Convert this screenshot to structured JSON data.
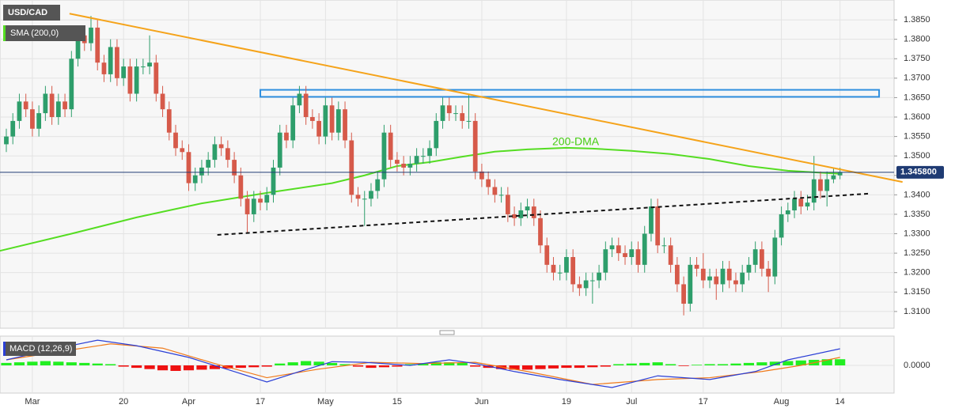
{
  "chart_data": {
    "type": "candlestick",
    "title": "USD/CAD",
    "indicator_label": "SMA (200,0)",
    "up_color": "#2e9e6b",
    "down_color": "#d65a4a",
    "grid": true,
    "xlim": [
      -0.97,
      136.3
    ],
    "ylim": [
      1.3057,
      1.3901
    ],
    "xticks": [
      {
        "value": 4,
        "label": "Mar"
      },
      {
        "value": 18,
        "label": "20"
      },
      {
        "value": 28,
        "label": "Apr"
      },
      {
        "value": 39,
        "label": "17"
      },
      {
        "value": 49,
        "label": "May"
      },
      {
        "value": 60,
        "label": "15"
      },
      {
        "value": 73,
        "label": "Jun"
      },
      {
        "value": 86,
        "label": "19"
      },
      {
        "value": 96,
        "label": "Jul"
      },
      {
        "value": 107,
        "label": "17"
      },
      {
        "value": 119,
        "label": "Aug"
      },
      {
        "value": 128,
        "label": "14"
      }
    ],
    "yticks": [
      {
        "value": 1.31,
        "label": "1.3100"
      },
      {
        "value": 1.315,
        "label": "1.3150"
      },
      {
        "value": 1.32,
        "label": "1.3200"
      },
      {
        "value": 1.325,
        "label": "1.3250"
      },
      {
        "value": 1.33,
        "label": "1.3300"
      },
      {
        "value": 1.335,
        "label": "1.3350"
      },
      {
        "value": 1.34,
        "label": "1.3400"
      },
      {
        "value": 1.345,
        "label": "1.3450"
      },
      {
        "value": 1.35,
        "label": "1.3500"
      },
      {
        "value": 1.355,
        "label": "1.3550"
      },
      {
        "value": 1.36,
        "label": "1.3600"
      },
      {
        "value": 1.365,
        "label": "1.3650"
      },
      {
        "value": 1.37,
        "label": "1.3700"
      },
      {
        "value": 1.375,
        "label": "1.3750"
      },
      {
        "value": 1.38,
        "label": "1.3800"
      },
      {
        "value": 1.385,
        "label": "1.3850"
      }
    ],
    "last_price": {
      "value": 1.3458,
      "label": "1.345800"
    },
    "candles": [
      [
        1.353,
        1.357,
        1.351,
        1.355
      ],
      [
        1.355,
        1.361,
        1.353,
        1.359
      ],
      [
        1.359,
        1.366,
        1.357,
        1.364
      ],
      [
        1.364,
        1.366,
        1.36,
        1.362
      ],
      [
        1.362,
        1.364,
        1.355,
        1.357
      ],
      [
        1.357,
        1.363,
        1.355,
        1.361
      ],
      [
        1.361,
        1.368,
        1.359,
        1.366
      ],
      [
        1.366,
        1.368,
        1.358,
        1.36
      ],
      [
        1.36,
        1.366,
        1.358,
        1.364
      ],
      [
        1.364,
        1.366,
        1.36,
        1.362
      ],
      [
        1.362,
        1.377,
        1.36,
        1.375
      ],
      [
        1.375,
        1.383,
        1.373,
        1.381
      ],
      [
        1.381,
        1.383,
        1.377,
        1.379
      ],
      [
        1.379,
        1.386,
        1.377,
        1.383
      ],
      [
        1.383,
        1.385,
        1.372,
        1.374
      ],
      [
        1.374,
        1.376,
        1.369,
        1.371
      ],
      [
        1.371,
        1.38,
        1.369,
        1.378
      ],
      [
        1.378,
        1.38,
        1.368,
        1.37
      ],
      [
        1.37,
        1.375,
        1.368,
        1.373
      ],
      [
        1.373,
        1.375,
        1.364,
        1.366
      ],
      [
        1.366,
        1.375,
        1.364,
        1.373
      ],
      [
        1.373,
        1.375,
        1.371,
        1.373
      ],
      [
        1.373,
        1.381,
        1.371,
        1.374
      ],
      [
        1.374,
        1.376,
        1.364,
        1.366
      ],
      [
        1.366,
        1.368,
        1.36,
        1.362
      ],
      [
        1.362,
        1.364,
        1.354,
        1.356
      ],
      [
        1.356,
        1.358,
        1.35,
        1.352
      ],
      [
        1.352,
        1.354,
        1.349,
        1.351
      ],
      [
        1.351,
        1.353,
        1.341,
        1.343
      ],
      [
        1.343,
        1.347,
        1.341,
        1.345
      ],
      [
        1.345,
        1.349,
        1.343,
        1.347
      ],
      [
        1.347,
        1.351,
        1.345,
        1.349
      ],
      [
        1.349,
        1.355,
        1.347,
        1.353
      ],
      [
        1.353,
        1.355,
        1.35,
        1.352
      ],
      [
        1.352,
        1.354,
        1.347,
        1.349
      ],
      [
        1.349,
        1.351,
        1.343,
        1.345
      ],
      [
        1.345,
        1.347,
        1.337,
        1.339
      ],
      [
        1.339,
        1.341,
        1.33,
        1.335
      ],
      [
        1.335,
        1.341,
        1.333,
        1.339
      ],
      [
        1.339,
        1.341,
        1.336,
        1.338
      ],
      [
        1.338,
        1.342,
        1.336,
        1.34
      ],
      [
        1.34,
        1.349,
        1.338,
        1.347
      ],
      [
        1.347,
        1.358,
        1.345,
        1.356
      ],
      [
        1.356,
        1.358,
        1.352,
        1.354
      ],
      [
        1.354,
        1.365,
        1.352,
        1.363
      ],
      [
        1.363,
        1.368,
        1.361,
        1.366
      ],
      [
        1.366,
        1.368,
        1.358,
        1.36
      ],
      [
        1.36,
        1.362,
        1.357,
        1.359
      ],
      [
        1.359,
        1.361,
        1.353,
        1.355
      ],
      [
        1.355,
        1.365,
        1.353,
        1.363
      ],
      [
        1.363,
        1.365,
        1.354,
        1.356
      ],
      [
        1.356,
        1.364,
        1.354,
        1.362
      ],
      [
        1.362,
        1.364,
        1.352,
        1.354
      ],
      [
        1.354,
        1.356,
        1.338,
        1.34
      ],
      [
        1.34,
        1.342,
        1.337,
        1.339
      ],
      [
        1.339,
        1.341,
        1.332,
        1.339
      ],
      [
        1.339,
        1.343,
        1.337,
        1.341
      ],
      [
        1.341,
        1.346,
        1.339,
        1.344
      ],
      [
        1.344,
        1.358,
        1.342,
        1.356
      ],
      [
        1.356,
        1.358,
        1.347,
        1.349
      ],
      [
        1.349,
        1.351,
        1.346,
        1.348
      ],
      [
        1.348,
        1.35,
        1.345,
        1.347
      ],
      [
        1.347,
        1.35,
        1.345,
        1.348
      ],
      [
        1.348,
        1.352,
        1.346,
        1.35
      ],
      [
        1.35,
        1.352,
        1.348,
        1.35
      ],
      [
        1.35,
        1.354,
        1.348,
        1.352
      ],
      [
        1.352,
        1.361,
        1.35,
        1.359
      ],
      [
        1.359,
        1.365,
        1.357,
        1.363
      ],
      [
        1.363,
        1.365,
        1.359,
        1.361
      ],
      [
        1.361,
        1.363,
        1.359,
        1.361
      ],
      [
        1.361,
        1.363,
        1.357,
        1.359
      ],
      [
        1.359,
        1.366,
        1.357,
        1.359
      ],
      [
        1.359,
        1.361,
        1.344,
        1.346
      ],
      [
        1.346,
        1.348,
        1.342,
        1.344
      ],
      [
        1.344,
        1.346,
        1.34,
        1.342
      ],
      [
        1.342,
        1.344,
        1.338,
        1.34
      ],
      [
        1.34,
        1.342,
        1.338,
        1.34
      ],
      [
        1.34,
        1.342,
        1.333,
        1.335
      ],
      [
        1.335,
        1.337,
        1.332,
        1.334
      ],
      [
        1.334,
        1.338,
        1.332,
        1.336
      ],
      [
        1.336,
        1.339,
        1.334,
        1.337
      ],
      [
        1.337,
        1.339,
        1.332,
        1.334
      ],
      [
        1.334,
        1.336,
        1.325,
        1.327
      ],
      [
        1.327,
        1.329,
        1.32,
        1.322
      ],
      [
        1.322,
        1.324,
        1.318,
        1.32
      ],
      [
        1.32,
        1.322,
        1.318,
        1.32
      ],
      [
        1.32,
        1.326,
        1.318,
        1.324
      ],
      [
        1.324,
        1.326,
        1.315,
        1.317
      ],
      [
        1.317,
        1.319,
        1.314,
        1.316
      ],
      [
        1.316,
        1.32,
        1.314,
        1.318
      ],
      [
        1.318,
        1.32,
        1.312,
        1.318
      ],
      [
        1.318,
        1.322,
        1.316,
        1.32
      ],
      [
        1.32,
        1.328,
        1.318,
        1.326
      ],
      [
        1.326,
        1.329,
        1.324,
        1.327
      ],
      [
        1.327,
        1.329,
        1.323,
        1.325
      ],
      [
        1.325,
        1.327,
        1.322,
        1.324
      ],
      [
        1.324,
        1.328,
        1.322,
        1.326
      ],
      [
        1.326,
        1.328,
        1.32,
        1.322
      ],
      [
        1.322,
        1.332,
        1.32,
        1.33
      ],
      [
        1.33,
        1.339,
        1.328,
        1.337
      ],
      [
        1.337,
        1.339,
        1.325,
        1.327
      ],
      [
        1.327,
        1.329,
        1.325,
        1.327
      ],
      [
        1.327,
        1.329,
        1.32,
        1.322
      ],
      [
        1.322,
        1.324,
        1.315,
        1.317
      ],
      [
        1.317,
        1.319,
        1.309,
        1.312
      ],
      [
        1.312,
        1.324,
        1.31,
        1.322
      ],
      [
        1.322,
        1.324,
        1.319,
        1.321
      ],
      [
        1.321,
        1.325,
        1.316,
        1.318
      ],
      [
        1.318,
        1.321,
        1.316,
        1.319
      ],
      [
        1.319,
        1.321,
        1.313,
        1.317
      ],
      [
        1.317,
        1.323,
        1.315,
        1.321
      ],
      [
        1.321,
        1.323,
        1.316,
        1.318
      ],
      [
        1.318,
        1.32,
        1.315,
        1.317
      ],
      [
        1.317,
        1.322,
        1.315,
        1.32
      ],
      [
        1.32,
        1.324,
        1.318,
        1.322
      ],
      [
        1.322,
        1.328,
        1.32,
        1.326
      ],
      [
        1.326,
        1.328,
        1.319,
        1.321
      ],
      [
        1.321,
        1.323,
        1.315,
        1.319
      ],
      [
        1.319,
        1.331,
        1.317,
        1.329
      ],
      [
        1.329,
        1.337,
        1.327,
        1.335
      ],
      [
        1.335,
        1.338,
        1.333,
        1.336
      ],
      [
        1.336,
        1.341,
        1.334,
        1.339
      ],
      [
        1.339,
        1.341,
        1.335,
        1.337
      ],
      [
        1.337,
        1.34,
        1.336,
        1.338
      ],
      [
        1.338,
        1.35,
        1.336,
        1.344
      ],
      [
        1.344,
        1.346,
        1.339,
        1.341
      ],
      [
        1.341,
        1.346,
        1.337,
        1.344
      ],
      [
        1.344,
        1.347,
        1.343,
        1.345
      ],
      [
        1.345,
        1.347,
        1.344,
        1.3458
      ]
    ],
    "sma": {
      "name": "200-DMA",
      "color": "#55dd22",
      "x": [
        -1,
        10,
        20,
        30,
        40,
        50,
        55,
        60,
        65,
        70,
        75,
        80,
        86,
        90,
        96,
        102,
        108,
        114,
        120,
        128
      ],
      "values": [
        1.3256,
        1.33,
        1.3342,
        1.3378,
        1.3405,
        1.343,
        1.345,
        1.3474,
        1.3484,
        1.3498,
        1.3511,
        1.3517,
        1.3521,
        1.3519,
        1.3513,
        1.3505,
        1.3492,
        1.3474,
        1.3462,
        1.3454
      ]
    },
    "resistance_line": {
      "color": "#f5a31a",
      "x": [
        9.7,
        137.6
      ],
      "values": [
        1.3866,
        1.3433
      ]
    },
    "support_line": {
      "color": "#111111",
      "x": [
        32.4,
        132.4
      ],
      "values": [
        1.3297,
        1.3403
      ]
    },
    "zone": {
      "color": "#2f8fdf",
      "x": [
        39,
        134
      ],
      "values": [
        1.3652,
        1.367
      ]
    },
    "macd": {
      "title": "MACD (12,26,9)",
      "ylim": [
        -0.0045,
        0.0045
      ],
      "yticks": [
        {
          "value": 0,
          "label": "0.0000"
        }
      ],
      "macd_line": {
        "color": "#2b3fd6",
        "x": [
          0,
          8,
          14,
          20,
          28,
          35,
          40,
          45,
          50,
          55,
          62,
          68,
          72,
          78,
          85,
          93,
          100,
          108,
          115,
          120,
          128
        ],
        "values": [
          0.0009,
          0.0028,
          0.0041,
          0.0032,
          0.0013,
          -0.001,
          -0.0027,
          -0.001,
          0.0006,
          0.0005,
          0,
          0.0009,
          0.0003,
          -0.001,
          -0.0023,
          -0.0036,
          -0.0017,
          -0.0023,
          -0.001,
          0.0009,
          0.0027
        ]
      },
      "signal_line": {
        "color": "#f07a1a",
        "x": [
          0,
          8,
          16,
          24,
          32,
          40,
          48,
          56,
          64,
          72,
          80,
          90,
          100,
          108,
          116,
          122,
          128
        ],
        "values": [
          0.0009,
          0.0022,
          0.0035,
          0.0028,
          0.0003,
          -0.002,
          -0.0006,
          0.0005,
          0.0003,
          0.0005,
          -0.001,
          -0.0031,
          -0.0023,
          -0.002,
          -0.001,
          0,
          0.0013
        ]
      },
      "histogram": {
        "up_color": "#22ee22",
        "down_color": "#ee1111",
        "x": [
          0,
          2,
          4,
          6,
          8,
          10,
          12,
          14,
          16,
          18,
          20,
          22,
          24,
          26,
          28,
          30,
          32,
          34,
          36,
          38,
          40,
          42,
          44,
          46,
          48,
          50,
          52,
          54,
          56,
          58,
          60,
          62,
          64,
          66,
          68,
          70,
          72,
          74,
          76,
          78,
          80,
          82,
          84,
          86,
          88,
          90,
          92,
          94,
          96,
          98,
          100,
          102,
          104,
          106,
          108,
          110,
          112,
          114,
          116,
          118,
          120,
          122,
          124,
          126,
          128
        ],
        "values": [
          0.0004,
          0.0005,
          0.0006,
          0.0007,
          0.0006,
          0.0005,
          0.0004,
          0.0003,
          0.0002,
          -0.0002,
          -0.0004,
          -0.0006,
          -0.0008,
          -0.0009,
          -0.0008,
          -0.0007,
          -0.0006,
          -0.0005,
          -0.0004,
          -0.0003,
          -0.0002,
          0.0003,
          0.0005,
          0.0007,
          0.0006,
          0.0004,
          0.0002,
          -0.0002,
          -0.0004,
          -0.0003,
          -0.0002,
          0.0002,
          0.0003,
          0.0005,
          0.0005,
          0.0004,
          -0.0002,
          -0.0004,
          -0.0006,
          -0.0007,
          -0.0007,
          -0.0006,
          -0.0005,
          -0.0004,
          -0.0004,
          -0.0003,
          -0.0002,
          0.0002,
          0.0003,
          0.0004,
          0.0005,
          0.0002,
          -0.0001,
          0.0001,
          0.0002,
          0.0002,
          0.0003,
          0.0004,
          0.0005,
          0.0006,
          0.0007,
          0.0008,
          0.0009,
          0.001,
          0.001
        ]
      }
    }
  }
}
